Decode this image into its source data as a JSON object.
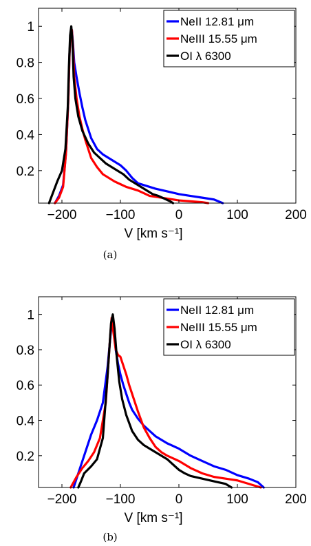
{
  "chart_data": [
    {
      "type": "line",
      "caption": "(a)",
      "xlabel": "V [km s⁻¹]",
      "ylabel": "",
      "xlim": [
        -240,
        200
      ],
      "ylim": [
        0.02,
        1.1
      ],
      "xticks": [
        -200,
        -100,
        0,
        100,
        200
      ],
      "xtick_labels": [
        "−200",
        "−100",
        "0",
        "100",
        "200"
      ],
      "yticks": [
        0.2,
        0.4,
        0.6,
        0.8,
        1.0
      ],
      "ytick_labels": [
        "0.2",
        "0.4",
        "0.6",
        "0.8",
        "1"
      ],
      "legend_position": "top-right",
      "series": [
        {
          "name": "NeII 12.81 μm",
          "color": "#0000ff",
          "x": [
            -212,
            -205,
            -198,
            -193,
            -189,
            -187,
            -185,
            -183,
            -181,
            -179,
            -175,
            -170,
            -165,
            -160,
            -150,
            -140,
            -130,
            -120,
            -110,
            -100,
            -90,
            -80,
            -70,
            -60,
            -50,
            -40,
            -20,
            0,
            20,
            40,
            60,
            75
          ],
          "y": [
            0.02,
            0.06,
            0.12,
            0.3,
            0.6,
            0.85,
            0.96,
            0.98,
            0.9,
            0.8,
            0.72,
            0.63,
            0.55,
            0.48,
            0.38,
            0.32,
            0.29,
            0.27,
            0.25,
            0.23,
            0.2,
            0.16,
            0.13,
            0.12,
            0.11,
            0.1,
            0.085,
            0.07,
            0.06,
            0.05,
            0.04,
            0.02
          ]
        },
        {
          "name": "NeIII 15.55 μm",
          "color": "#ff0000",
          "x": [
            -212,
            -205,
            -198,
            -193,
            -189,
            -187,
            -185,
            -183,
            -181,
            -179,
            -175,
            -170,
            -165,
            -160,
            -150,
            -140,
            -130,
            -120,
            -110,
            -100,
            -90,
            -80,
            -70,
            -60,
            -50,
            -40,
            -20,
            0,
            20,
            40,
            50
          ],
          "y": [
            0.02,
            0.05,
            0.11,
            0.3,
            0.6,
            0.85,
            0.96,
            0.98,
            0.88,
            0.72,
            0.6,
            0.5,
            0.43,
            0.37,
            0.27,
            0.22,
            0.18,
            0.16,
            0.14,
            0.125,
            0.11,
            0.1,
            0.09,
            0.075,
            0.06,
            0.055,
            0.045,
            0.035,
            0.03,
            0.025,
            0.02
          ]
        },
        {
          "name": "OI λ 6300",
          "color": "#000000",
          "x": [
            -222,
            -215,
            -208,
            -200,
            -194,
            -190,
            -188,
            -186,
            -184,
            -182,
            -180,
            -177,
            -172,
            -165,
            -155,
            -145,
            -135,
            -125,
            -115,
            -105,
            -95,
            -85,
            -75,
            -65,
            -55,
            -45,
            -35,
            -25,
            -15,
            -10
          ],
          "y": [
            0.02,
            0.08,
            0.14,
            0.2,
            0.32,
            0.55,
            0.78,
            0.95,
            1.0,
            0.92,
            0.72,
            0.6,
            0.5,
            0.42,
            0.35,
            0.3,
            0.27,
            0.24,
            0.22,
            0.2,
            0.18,
            0.15,
            0.13,
            0.11,
            0.09,
            0.07,
            0.06,
            0.045,
            0.03,
            0.02
          ]
        }
      ]
    },
    {
      "type": "line",
      "caption": "(b)",
      "xlabel": "V [km s⁻¹]",
      "ylabel": "",
      "xlim": [
        -240,
        200
      ],
      "ylim": [
        0.02,
        1.1
      ],
      "xticks": [
        -200,
        -100,
        0,
        100,
        200
      ],
      "xtick_labels": [
        "−200",
        "−100",
        "0",
        "100",
        "200"
      ],
      "yticks": [
        0.2,
        0.4,
        0.6,
        0.8,
        1.0
      ],
      "ytick_labels": [
        "0.2",
        "0.4",
        "0.6",
        "0.8",
        "1"
      ],
      "legend_position": "top-right",
      "series": [
        {
          "name": "NeII 12.81 μm",
          "color": "#0000ff",
          "x": [
            -180,
            -170,
            -160,
            -150,
            -140,
            -130,
            -122,
            -117,
            -114,
            -111,
            -108,
            -104,
            -100,
            -95,
            -90,
            -85,
            -80,
            -70,
            -60,
            -50,
            -40,
            -30,
            -20,
            -10,
            0,
            10,
            20,
            40,
            60,
            80,
            100,
            120,
            135,
            145
          ],
          "y": [
            0.02,
            0.12,
            0.22,
            0.32,
            0.4,
            0.5,
            0.7,
            0.88,
            0.98,
            0.92,
            0.8,
            0.72,
            0.66,
            0.6,
            0.55,
            0.5,
            0.46,
            0.41,
            0.37,
            0.34,
            0.31,
            0.29,
            0.27,
            0.255,
            0.24,
            0.22,
            0.2,
            0.17,
            0.14,
            0.12,
            0.09,
            0.07,
            0.05,
            0.02
          ]
        },
        {
          "name": "NeIII 15.55 μm",
          "color": "#ff0000",
          "x": [
            -185,
            -175,
            -165,
            -155,
            -145,
            -135,
            -125,
            -118,
            -115,
            -112,
            -108,
            -104,
            -100,
            -96,
            -90,
            -85,
            -80,
            -70,
            -60,
            -50,
            -40,
            -30,
            -20,
            -10,
            0,
            10,
            20,
            40,
            60,
            80,
            100,
            120,
            140
          ],
          "y": [
            0.02,
            0.08,
            0.13,
            0.17,
            0.22,
            0.3,
            0.5,
            0.85,
            0.98,
            0.9,
            0.8,
            0.77,
            0.76,
            0.72,
            0.66,
            0.6,
            0.55,
            0.45,
            0.36,
            0.3,
            0.25,
            0.22,
            0.2,
            0.185,
            0.17,
            0.15,
            0.13,
            0.1,
            0.08,
            0.07,
            0.06,
            0.04,
            0.02
          ]
        },
        {
          "name": "OI λ 6300",
          "color": "#000000",
          "x": [
            -172,
            -168,
            -162,
            -150,
            -140,
            -130,
            -122,
            -116,
            -113,
            -110,
            -106,
            -102,
            -97,
            -90,
            -80,
            -70,
            -60,
            -50,
            -40,
            -30,
            -20,
            -10,
            0,
            10,
            20,
            40,
            60,
            80,
            90
          ],
          "y": [
            0.02,
            0.05,
            0.1,
            0.14,
            0.18,
            0.3,
            0.65,
            0.95,
            1.0,
            0.92,
            0.75,
            0.62,
            0.52,
            0.43,
            0.34,
            0.29,
            0.26,
            0.24,
            0.22,
            0.2,
            0.18,
            0.15,
            0.12,
            0.1,
            0.085,
            0.07,
            0.055,
            0.04,
            0.02
          ]
        }
      ]
    }
  ]
}
